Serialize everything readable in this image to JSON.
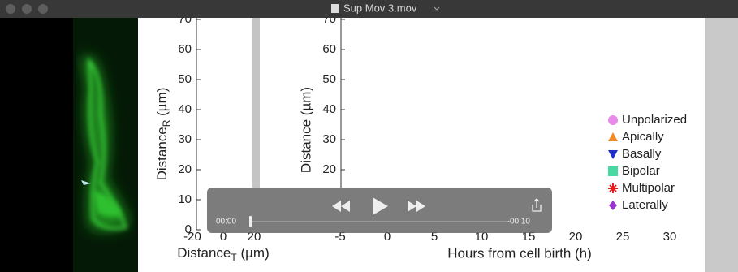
{
  "window": {
    "title": "Sup Mov 3.mov"
  },
  "video": {
    "left_plot": {
      "y_ticks": [
        0,
        10,
        20,
        30,
        40,
        50,
        60,
        70
      ],
      "y_label": {
        "text": "Distance",
        "sub": "R",
        "unit": " (µm)"
      },
      "x_ticks": [
        -20,
        0,
        20
      ],
      "x_label": {
        "text": "Distance",
        "sub": "T",
        "unit": " (µm)"
      }
    },
    "right_plot": {
      "y_ticks": [
        20,
        30,
        40,
        50,
        60,
        70
      ],
      "y_label": "Distance (µm)",
      "x_ticks": [
        -5,
        0,
        5,
        10,
        15,
        20,
        25,
        30
      ],
      "x_label": "Hours from cell birth (h)"
    },
    "legend": [
      "Unpolarized",
      "Apically",
      "Basally",
      "Bipolar",
      "Multipolar",
      "Laterally"
    ]
  },
  "player": {
    "current_time": "00:00",
    "remaining_time": "-00:10"
  }
}
